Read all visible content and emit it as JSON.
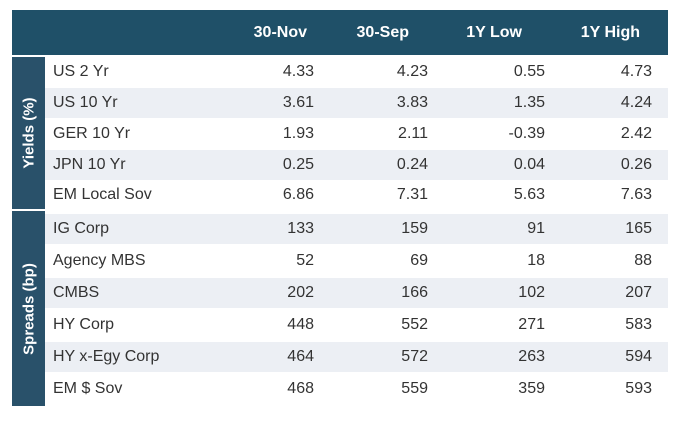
{
  "header": {
    "col1": "30-Nov",
    "col2": "30-Sep",
    "col3": "1Y Low",
    "col4": "1Y High"
  },
  "groups": {
    "yields": "Yields (%)",
    "spreads": "Spreads (bp)"
  },
  "yields": [
    {
      "label": "US 2 Yr",
      "v1": "4.33",
      "v2": "4.23",
      "v3": "0.55",
      "v4": "4.73"
    },
    {
      "label": "US 10 Yr",
      "v1": "3.61",
      "v2": "3.83",
      "v3": "1.35",
      "v4": "4.24"
    },
    {
      "label": "GER 10 Yr",
      "v1": "1.93",
      "v2": "2.11",
      "v3": "-0.39",
      "v4": "2.42"
    },
    {
      "label": "JPN 10 Yr",
      "v1": "0.25",
      "v2": "0.24",
      "v3": "0.04",
      "v4": "0.26"
    },
    {
      "label": "EM Local Sov",
      "v1": "6.86",
      "v2": "7.31",
      "v3": "5.63",
      "v4": "7.63"
    }
  ],
  "spreads": [
    {
      "label": "IG Corp",
      "v1": "133",
      "v2": "159",
      "v3": "91",
      "v4": "165"
    },
    {
      "label": "Agency MBS",
      "v1": "52",
      "v2": "69",
      "v3": "18",
      "v4": "88"
    },
    {
      "label": "CMBS",
      "v1": "202",
      "v2": "166",
      "v3": "102",
      "v4": "207"
    },
    {
      "label": "HY Corp",
      "v1": "448",
      "v2": "552",
      "v3": "271",
      "v4": "583"
    },
    {
      "label": "HY x-Egy Corp",
      "v1": "464",
      "v2": "572",
      "v3": "263",
      "v4": "594"
    },
    {
      "label": "EM $ Sov",
      "v1": "468",
      "v2": "559",
      "v3": "359",
      "v4": "593"
    }
  ]
}
